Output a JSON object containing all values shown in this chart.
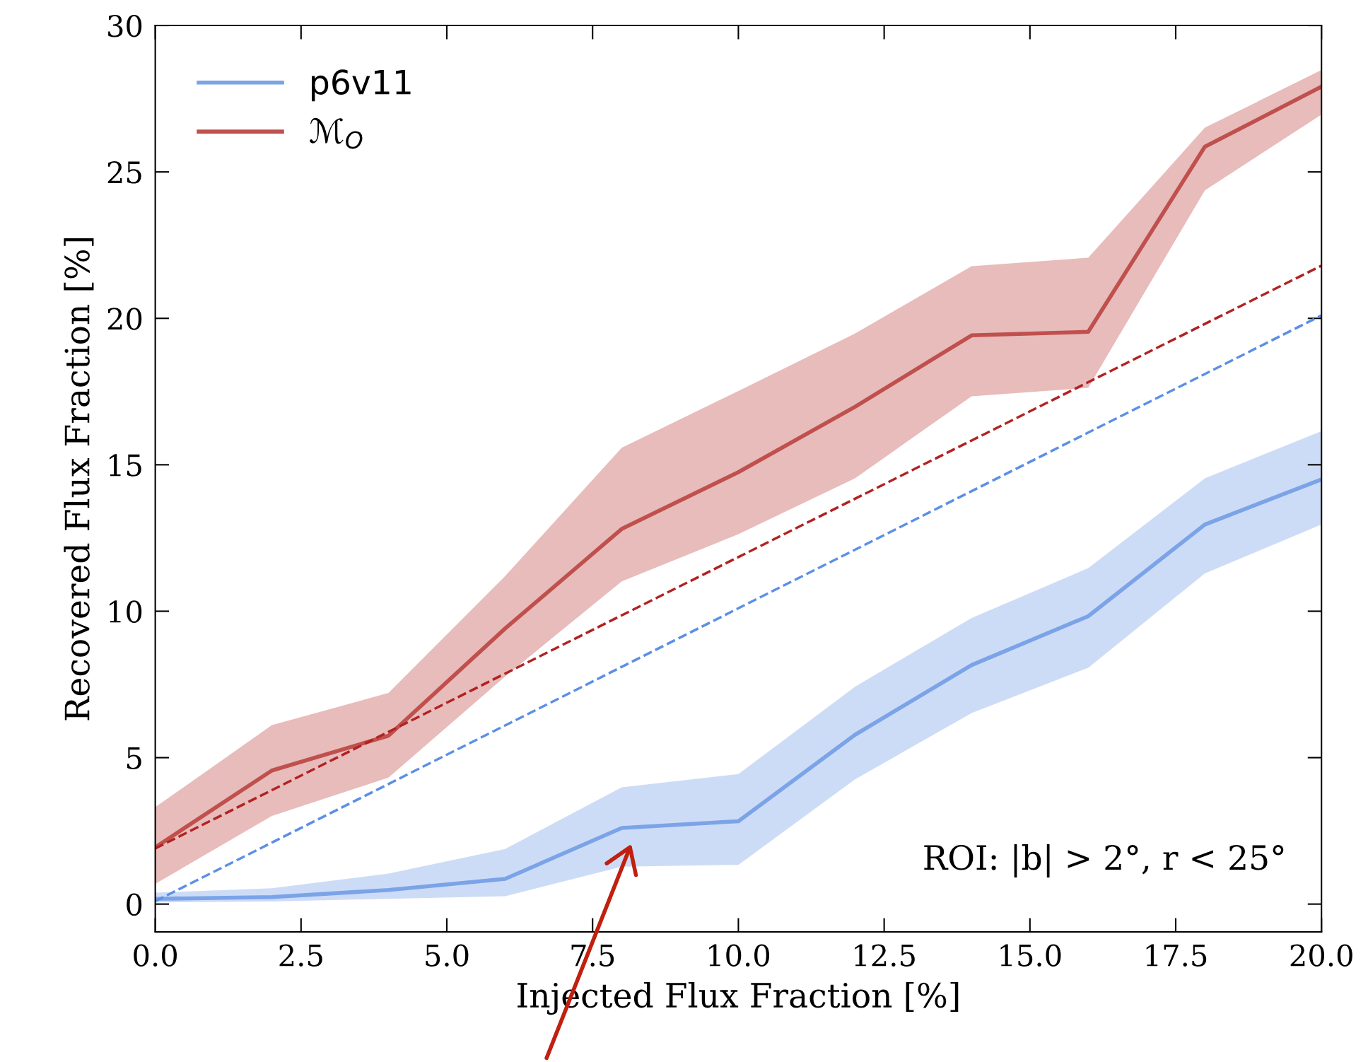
{
  "chart_data": {
    "type": "line",
    "xlabel": "Injected Flux Fraction [%]",
    "ylabel": "Recovered Flux Fraction [%]",
    "x": [
      0,
      2,
      4,
      6,
      8,
      10,
      12,
      14,
      16,
      18,
      20
    ],
    "series": [
      {
        "name": "p6v11",
        "color": "#7ba3e8",
        "values": [
          0.18,
          0.24,
          0.48,
          0.86,
          2.6,
          2.83,
          5.78,
          8.16,
          9.83,
          12.96,
          14.5
        ],
        "lower": [
          0.06,
          0.09,
          0.18,
          0.27,
          1.28,
          1.34,
          4.26,
          6.52,
          8.07,
          11.29,
          12.96
        ],
        "upper": [
          0.39,
          0.54,
          1.04,
          1.88,
          3.99,
          4.44,
          7.42,
          9.77,
          11.47,
          14.54,
          16.15
        ]
      },
      {
        "name": "ℳ$_{O}$",
        "color": "#c0504d",
        "values": [
          1.94,
          4.56,
          5.75,
          9.41,
          12.81,
          14.75,
          16.98,
          19.42,
          19.54,
          25.86,
          27.91
        ],
        "lower": [
          0.69,
          3.01,
          4.32,
          7.77,
          11.02,
          12.63,
          14.54,
          17.34,
          17.63,
          24.37,
          26.96
        ],
        "upper": [
          3.31,
          6.11,
          7.21,
          11.2,
          15.58,
          17.52,
          19.48,
          21.78,
          22.07,
          26.51,
          28.48
        ]
      },
      {
        "type": "line",
        "line_style": "dashed",
        "color": "#b22222",
        "values": [
          1.9,
          3.89,
          5.88,
          7.87,
          9.86,
          11.85,
          13.84,
          15.83,
          17.82,
          19.81,
          21.8
        ]
      },
      {
        "type": "line",
        "line_style": "dashed",
        "color": "#5c8fe6",
        "values": [
          0.1,
          2.1,
          4.1,
          6.1,
          8.1,
          10.1,
          12.1,
          14.1,
          16.1,
          18.1,
          20.1
        ]
      }
    ],
    "xlim": [
      0,
      20
    ],
    "ylim": [
      -0.95,
      30
    ],
    "xticks": [
      {
        "value": 0,
        "label": "0.0"
      },
      {
        "value": 2.5,
        "label": "2.5"
      },
      {
        "value": 5,
        "label": "5.0"
      },
      {
        "value": 7.5,
        "label": "7.5"
      },
      {
        "value": 10,
        "label": "10.0"
      },
      {
        "value": 12.5,
        "label": "12.5"
      },
      {
        "value": 15,
        "label": "15.0"
      },
      {
        "value": 17.5,
        "label": "17.5"
      },
      {
        "value": 20,
        "label": "20.0"
      }
    ],
    "yticks": [
      0,
      5,
      10,
      15,
      20,
      25,
      30
    ],
    "annotations": [
      "ROI: |b| > 2°, r < 25°"
    ],
    "legend": "top left",
    "grid": false,
    "marker": "none",
    "line_style": "solid"
  }
}
